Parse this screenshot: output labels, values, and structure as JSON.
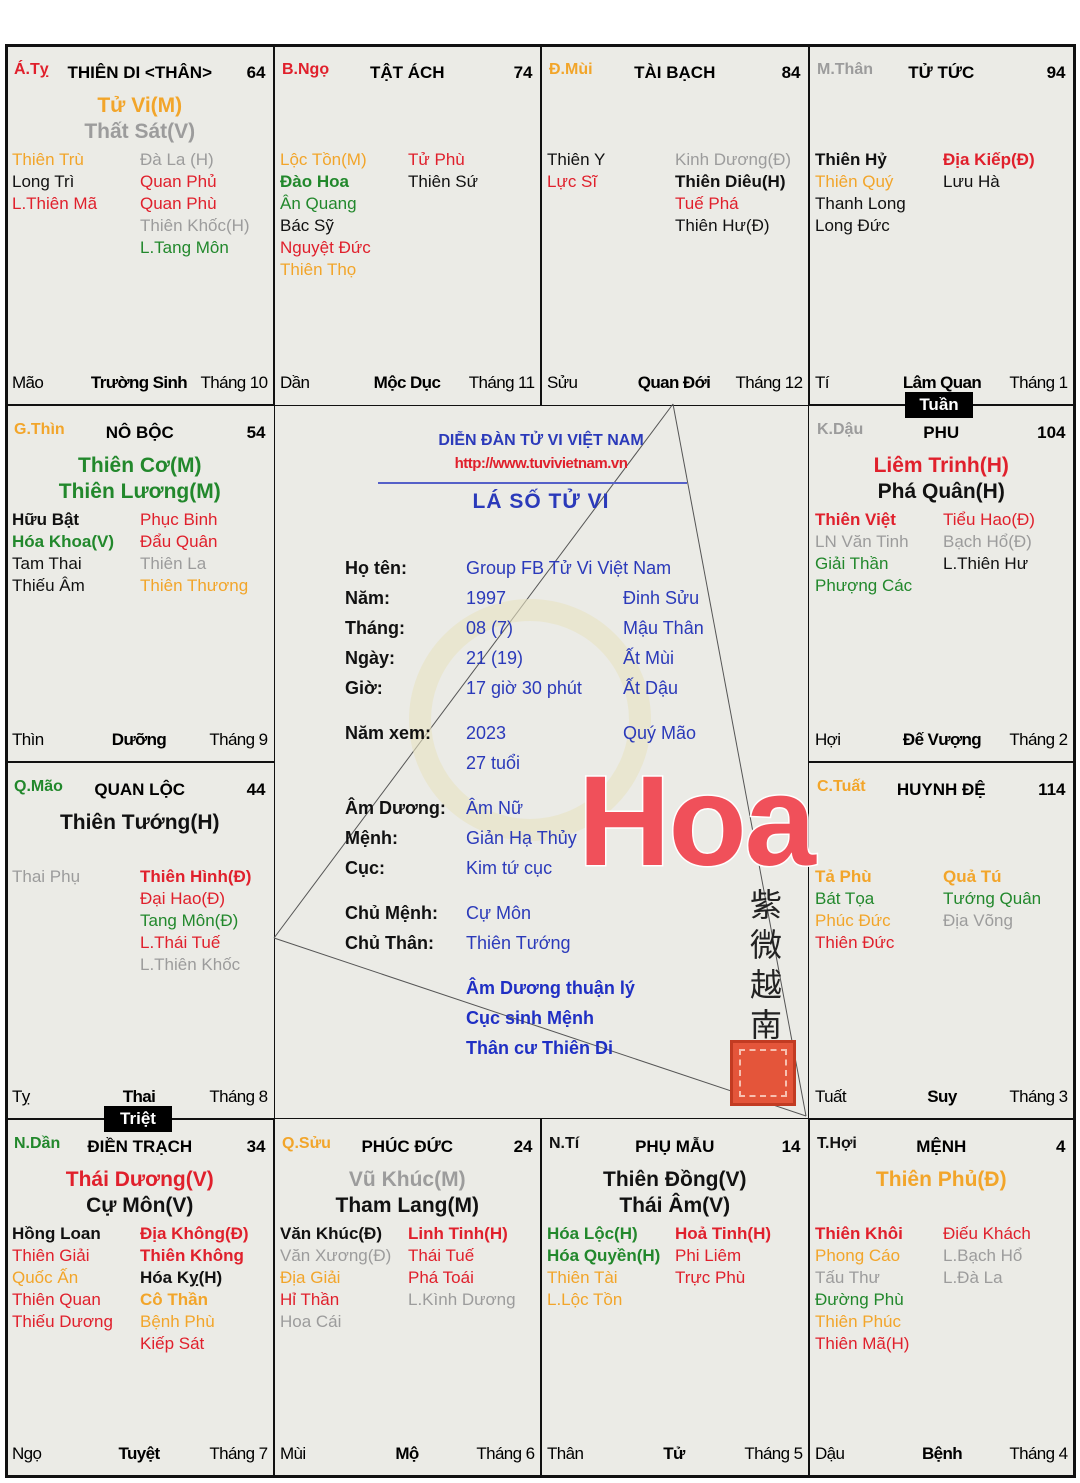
{
  "colors": {
    "r": "#e0202c",
    "y": "#f2a52a",
    "g": "#22882c",
    "k": "#111111",
    "s": "#9c9c9c",
    "blue": "#2b3aba",
    "url_red": "#e0202c",
    "hoa": "#f0505a",
    "seal": "#e4553a"
  },
  "cells": [
    {
      "can_chi": "Á.Tỵ",
      "cc_color": "r",
      "name": "THIÊN DI <THÂN>",
      "age": "64",
      "main": [
        {
          "t": "Tử Vi(M)",
          "c": "y"
        },
        {
          "t": "Thất Sát(V)",
          "c": "s"
        }
      ],
      "left": [
        {
          "t": "Thiên Trù",
          "c": "y"
        },
        {
          "t": "Long Trì",
          "c": "k"
        },
        {
          "t": "L.Thiên Mã",
          "c": "r"
        }
      ],
      "right": [
        {
          "t": "Đà La (H)",
          "c": "s"
        },
        {
          "t": "Quan Phủ",
          "c": "r"
        },
        {
          "t": "Quan Phù",
          "c": "r"
        },
        {
          "t": "Thiên Khốc(H)",
          "c": "s"
        },
        {
          "t": "L.Tang Môn",
          "c": "g"
        }
      ],
      "footer": {
        "branch": "Mão",
        "stage": "Trường Sinh",
        "month": "Tháng 10"
      }
    },
    {
      "can_chi": "B.Ngọ",
      "cc_color": "r",
      "name": "TẬT ÁCH",
      "age": "74",
      "main": [],
      "left": [
        {
          "t": "Lộc Tồn(M)",
          "c": "y"
        },
        {
          "t": "Đào Hoa",
          "c": "g",
          "b": true
        },
        {
          "t": "Ân Quang",
          "c": "g"
        },
        {
          "t": "Bác Sỹ",
          "c": "k"
        },
        {
          "t": "Nguyệt Đức",
          "c": "r"
        },
        {
          "t": "Thiên Thọ",
          "c": "y"
        }
      ],
      "right": [
        {
          "t": "Tử Phù",
          "c": "r"
        },
        {
          "t": "Thiên Sứ",
          "c": "k"
        }
      ],
      "footer": {
        "branch": "Dần",
        "stage": "Mộc Dục",
        "month": "Tháng 11"
      }
    },
    {
      "can_chi": "Đ.Mùi",
      "cc_color": "y",
      "name": "TÀI BẠCH",
      "age": "84",
      "main": [],
      "left": [
        {
          "t": "Thiên Y",
          "c": "k"
        },
        {
          "t": "Lực Sĩ",
          "c": "r"
        }
      ],
      "right": [
        {
          "t": "Kinh Dương(Đ)",
          "c": "s"
        },
        {
          "t": "Thiên Diêu(H)",
          "c": "k",
          "b": true
        },
        {
          "t": "Tuế Phá",
          "c": "r"
        },
        {
          "t": "Thiên Hư(Đ)",
          "c": "k"
        }
      ],
      "footer": {
        "branch": "Sửu",
        "stage": "Quan Đới",
        "month": "Tháng 12"
      }
    },
    {
      "can_chi": "M.Thân",
      "cc_color": "s",
      "name": "TỬ TỨC",
      "age": "94",
      "main": [],
      "left": [
        {
          "t": "Thiên Hỷ",
          "c": "k",
          "b": true
        },
        {
          "t": "Thiên Quý",
          "c": "y"
        },
        {
          "t": "Thanh Long",
          "c": "k"
        },
        {
          "t": "Long Đức",
          "c": "k"
        }
      ],
      "right": [
        {
          "t": "Địa Kiếp(Đ)",
          "c": "r",
          "b": true
        },
        {
          "t": "Lưu Hà",
          "c": "k"
        }
      ],
      "footer": {
        "branch": "Tí",
        "stage": "Lâm Quan",
        "month": "Tháng 1"
      }
    },
    {
      "can_chi": "G.Thìn",
      "cc_color": "y",
      "name": "NÔ BỘC",
      "age": "54",
      "main": [
        {
          "t": "Thiên Cơ(M)",
          "c": "g"
        },
        {
          "t": "Thiên Lương(M)",
          "c": "g"
        }
      ],
      "left": [
        {
          "t": "Hữu Bật",
          "c": "k",
          "b": true
        },
        {
          "t": "Hóa Khoa(V)",
          "c": "g",
          "b": true
        },
        {
          "t": "Tam Thai",
          "c": "k"
        },
        {
          "t": "Thiếu Âm",
          "c": "k"
        }
      ],
      "right": [
        {
          "t": "Phục Binh",
          "c": "r"
        },
        {
          "t": "Đẩu Quân",
          "c": "r"
        },
        {
          "t": "Thiên La",
          "c": "s"
        },
        {
          "t": "Thiên Thương",
          "c": "y"
        }
      ],
      "footer": {
        "branch": "Thìn",
        "stage": "Dưỡng",
        "month": "Tháng 9"
      }
    },
    {
      "can_chi": "K.Dậu",
      "cc_color": "s",
      "name": "PHU",
      "age": "104",
      "main": [
        {
          "t": "Liêm Trinh(H)",
          "c": "r"
        },
        {
          "t": "Phá Quân(H)",
          "c": "k"
        }
      ],
      "left": [
        {
          "t": "Thiên Việt",
          "c": "r",
          "b": true
        },
        {
          "t": "LN Văn Tinh",
          "c": "s"
        },
        {
          "t": "Giải Thần",
          "c": "g"
        },
        {
          "t": "Phượng Các",
          "c": "g"
        }
      ],
      "right": [
        {
          "t": "Tiểu Hao(Đ)",
          "c": "r"
        },
        {
          "t": "Bạch Hổ(Đ)",
          "c": "s"
        },
        {
          "t": "L.Thiên Hư",
          "c": "k"
        }
      ],
      "footer": {
        "branch": "Hợi",
        "stage": "Đế Vượng",
        "month": "Tháng 2"
      }
    },
    {
      "can_chi": "Q.Mão",
      "cc_color": "g",
      "name": "QUAN LỘC",
      "age": "44",
      "main": [
        {
          "t": "Thiên Tướng(H)",
          "c": "k"
        }
      ],
      "left": [
        {
          "t": "Thai Phụ",
          "c": "s"
        }
      ],
      "right": [
        {
          "t": "Thiên Hình(Đ)",
          "c": "r",
          "b": true
        },
        {
          "t": "Đại Hao(Đ)",
          "c": "r"
        },
        {
          "t": "Tang Môn(Đ)",
          "c": "g"
        },
        {
          "t": "L.Thái Tuế",
          "c": "r"
        },
        {
          "t": "L.Thiên Khốc",
          "c": "s"
        }
      ],
      "footer": {
        "branch": "Tỵ",
        "stage": "Thai",
        "month": "Tháng 8"
      }
    },
    {
      "can_chi": "C.Tuất",
      "cc_color": "y",
      "name": "HUYNH ĐỆ",
      "age": "114",
      "main": [],
      "left": [
        {
          "t": "Tả Phù",
          "c": "y",
          "b": true
        },
        {
          "t": "Bát Tọa",
          "c": "g"
        },
        {
          "t": "Phúc Đức",
          "c": "y"
        },
        {
          "t": "Thiên Đức",
          "c": "r"
        }
      ],
      "right": [
        {
          "t": "Quả Tú",
          "c": "y",
          "b": true
        },
        {
          "t": "Tướng Quân",
          "c": "g"
        },
        {
          "t": "Địa Võng",
          "c": "s"
        }
      ],
      "footer": {
        "branch": "Tuất",
        "stage": "Suy",
        "month": "Tháng 3"
      }
    },
    {
      "can_chi": "N.Dần",
      "cc_color": "g",
      "name": "ĐIỀN TRẠCH",
      "age": "34",
      "main": [
        {
          "t": "Thái Dương(V)",
          "c": "r"
        },
        {
          "t": "Cự Môn(V)",
          "c": "k"
        }
      ],
      "left": [
        {
          "t": "Hồng Loan",
          "c": "k",
          "b": true
        },
        {
          "t": "Thiên Giải",
          "c": "r"
        },
        {
          "t": "Quốc Ấn",
          "c": "y"
        },
        {
          "t": "Thiên Quan",
          "c": "r"
        },
        {
          "t": "Thiếu Dương",
          "c": "r"
        }
      ],
      "right": [
        {
          "t": "Địa Không(Đ)",
          "c": "r",
          "b": true
        },
        {
          "t": "Thiên Không",
          "c": "r",
          "b": true
        },
        {
          "t": "Hóa Kỵ(H)",
          "c": "k",
          "b": true
        },
        {
          "t": "Cô Thần",
          "c": "y",
          "b": true
        },
        {
          "t": "Bệnh Phù",
          "c": "y"
        },
        {
          "t": "Kiếp Sát",
          "c": "r"
        }
      ],
      "footer": {
        "branch": "Ngọ",
        "stage": "Tuyệt",
        "month": "Tháng 7"
      }
    },
    {
      "can_chi": "Q.Sửu",
      "cc_color": "y",
      "name": "PHÚC ĐỨC",
      "age": "24",
      "main": [
        {
          "t": "Vũ Khúc(M)",
          "c": "s"
        },
        {
          "t": "Tham Lang(M)",
          "c": "k"
        }
      ],
      "left": [
        {
          "t": "Văn Khúc(Đ)",
          "c": "k",
          "b": true
        },
        {
          "t": "Văn Xương(Đ)",
          "c": "s"
        },
        {
          "t": "Địa Giải",
          "c": "y"
        },
        {
          "t": "Hỉ Thần",
          "c": "r"
        },
        {
          "t": "Hoa Cái",
          "c": "s"
        }
      ],
      "right": [
        {
          "t": "Linh Tinh(H)",
          "c": "r",
          "b": true
        },
        {
          "t": "Thái Tuế",
          "c": "r"
        },
        {
          "t": "Phá Toái",
          "c": "r"
        },
        {
          "t": "L.Kình Dương",
          "c": "s"
        }
      ],
      "footer": {
        "branch": "Mùi",
        "stage": "Mộ",
        "month": "Tháng 6"
      }
    },
    {
      "can_chi": "N.Tí",
      "cc_color": "k",
      "name": "PHỤ MẪU",
      "age": "14",
      "main": [
        {
          "t": "Thiên Đồng(V)",
          "c": "k"
        },
        {
          "t": "Thái Âm(V)",
          "c": "k"
        }
      ],
      "left": [
        {
          "t": "Hóa Lộc(H)",
          "c": "g",
          "b": true
        },
        {
          "t": "Hóa Quyền(H)",
          "c": "g",
          "b": true
        },
        {
          "t": "Thiên Tài",
          "c": "y"
        },
        {
          "t": "L.Lộc Tồn",
          "c": "y"
        }
      ],
      "right": [
        {
          "t": "Hoả Tinh(H)",
          "c": "r",
          "b": true
        },
        {
          "t": "Phi Liêm",
          "c": "r"
        },
        {
          "t": "Trực Phù",
          "c": "r"
        }
      ],
      "footer": {
        "branch": "Thân",
        "stage": "Tử",
        "month": "Tháng 5"
      }
    },
    {
      "can_chi": "T.Hợi",
      "cc_color": "k",
      "name": "MỆNH",
      "age": "4",
      "main": [
        {
          "t": "Thiên Phủ(Đ)",
          "c": "y"
        }
      ],
      "left": [
        {
          "t": "Thiên Khôi",
          "c": "r",
          "b": true
        },
        {
          "t": "Phong Cáo",
          "c": "y"
        },
        {
          "t": "Tấu Thư",
          "c": "s"
        },
        {
          "t": "Đường Phù",
          "c": "g"
        },
        {
          "t": "Thiên Phúc",
          "c": "y"
        },
        {
          "t": "Thiên Mã(H)",
          "c": "r"
        }
      ],
      "right": [
        {
          "t": "Điếu Khách",
          "c": "r"
        },
        {
          "t": "L.Bạch Hổ",
          "c": "s"
        },
        {
          "t": "L.Đà La",
          "c": "s"
        }
      ],
      "footer": {
        "branch": "Dậu",
        "stage": "Bệnh",
        "month": "Tháng 4"
      }
    }
  ],
  "tags": {
    "tuan": "Tuần",
    "triet": "Triệt"
  },
  "center": {
    "site_title": "DIỄN ĐÀN TỬ VI VIỆT NAM",
    "url": "http://www.tuvivietnam.vn",
    "chart_title": "LÁ SỐ TỬ VI",
    "rows": [
      {
        "label": "Họ tên:",
        "value": "Group FB Tử Vi Việt Nam",
        "extra": ""
      },
      {
        "label": "Năm:",
        "value": "1997",
        "extra": "Đinh Sửu"
      },
      {
        "label": "Tháng:",
        "value": "08 (7)",
        "extra": "Mậu Thân"
      },
      {
        "label": "Ngày:",
        "value": "21 (19)",
        "extra": "Ất Mùi"
      },
      {
        "label": "Giờ:",
        "value": "17 giờ 30 phút",
        "extra": "Ất Dậu"
      },
      {
        "label": "Năm xem:",
        "value": "2023",
        "extra": "Quý Mão"
      },
      {
        "label": "",
        "value": "27 tuổi",
        "extra": ""
      },
      {
        "label": "Âm Dương:",
        "value": "Âm Nữ",
        "extra": ""
      },
      {
        "label": "Mệnh:",
        "value": "Giản Hạ Thủy",
        "extra": ""
      },
      {
        "label": "Cục:",
        "value": "Kim tứ cục",
        "extra": ""
      },
      {
        "label": "Chủ Mệnh:",
        "value": "Cự Môn",
        "extra": ""
      },
      {
        "label": "Chủ Thân:",
        "value": "Thiên Tướng",
        "extra": ""
      }
    ],
    "notes": [
      "Âm Dương thuận lý",
      "Cục sinh Mệnh",
      "Thân cư Thiên Di"
    ],
    "calligraphy": "紫微越南"
  },
  "overlay_text": "Hoa"
}
